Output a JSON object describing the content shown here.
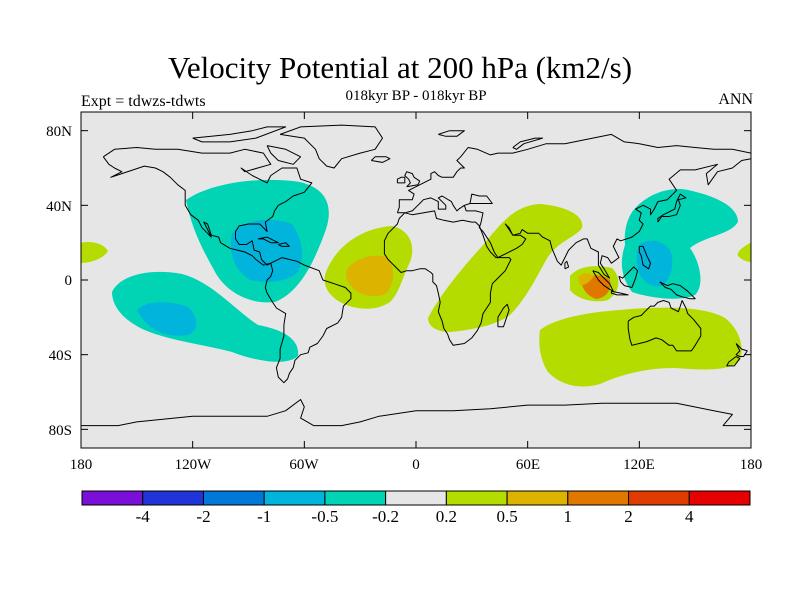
{
  "title": "Velocity Potential at 200 hPa (km2/s)",
  "subtitle": "018kyr BP - 018kyr BP",
  "left_note": "Expt = tdwzs-tdwts",
  "right_note": "ANN",
  "map": {
    "projection": "cylindrical-equidistant",
    "lon_range": [
      -180,
      180
    ],
    "lat_range": [
      -90,
      90
    ],
    "ocean_background_color": "#e6e6e6",
    "lat_labels": [
      "80N",
      "40N",
      "0",
      "40S",
      "80S"
    ],
    "lon_labels": [
      "180",
      "120W",
      "60W",
      "0",
      "60E",
      "120E",
      "180"
    ]
  },
  "colorbar": {
    "colors": [
      "#7a10d8",
      "#2035d8",
      "#0078d8",
      "#00b4dc",
      "#00d4b4",
      "#e6e6e6",
      "#b4dc00",
      "#dcb400",
      "#e07800",
      "#e03c00",
      "#e60000"
    ],
    "labels": [
      "-4",
      "-2",
      "-1",
      "-0.5",
      "-0.2",
      "0.2",
      "0.5",
      "1",
      "2",
      "4"
    ]
  }
}
